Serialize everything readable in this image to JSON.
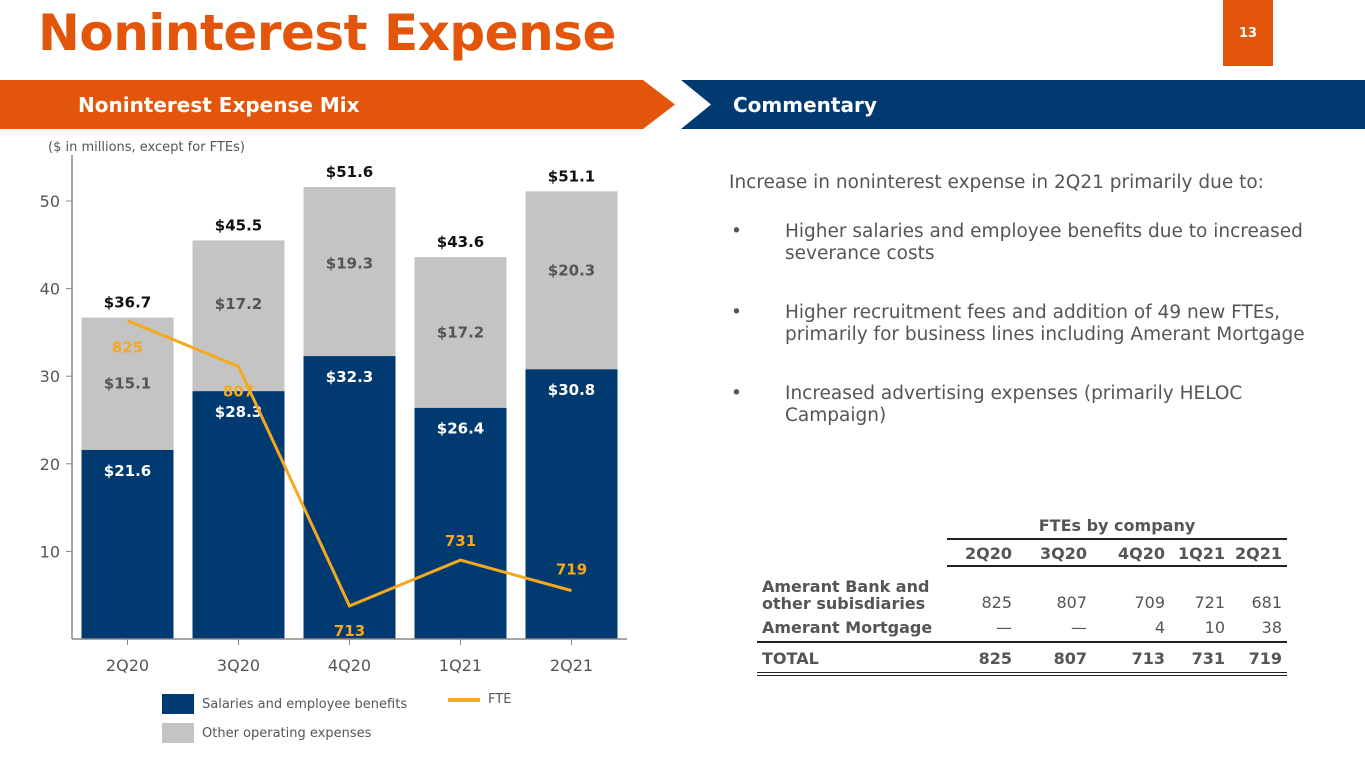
{
  "page": {
    "title": "Noninterest Expense",
    "number": "13"
  },
  "bands": {
    "left": "Noninterest Expense Mix",
    "right": "Commentary"
  },
  "chart_data": {
    "type": "bar",
    "stacked": true,
    "note": "($ in millions, except for FTEs)",
    "categories": [
      "2Q20",
      "3Q20",
      "4Q20",
      "1Q21",
      "2Q21"
    ],
    "yticks": [
      "10",
      "20",
      "30",
      "40",
      "50"
    ],
    "ylim": [
      0,
      50
    ],
    "series": [
      {
        "name": "Salaries and employee benefits",
        "values": [
          21.6,
          28.3,
          32.3,
          26.4,
          30.8
        ],
        "labels": [
          "$21.6",
          "$28.3",
          "$32.3",
          "$26.4",
          "$30.8"
        ],
        "color": "#003a70"
      },
      {
        "name": "Other operating expenses",
        "values": [
          15.1,
          17.2,
          19.3,
          17.2,
          20.3
        ],
        "labels": [
          "$15.1",
          "$17.2",
          "$19.3",
          "$17.2",
          "$20.3"
        ],
        "color": "#c4c4c4"
      }
    ],
    "totals": [
      "$36.7",
      "$45.5",
      "$51.6",
      "$43.6",
      "$51.1"
    ],
    "totals_values": [
      36.7,
      45.5,
      51.6,
      43.6,
      51.1
    ],
    "line": {
      "name": "FTE",
      "type": "line",
      "values": [
        825,
        807,
        713,
        731,
        719
      ],
      "labels": [
        "825",
        "807",
        "713",
        "731",
        "719"
      ],
      "color": "#f4a91e",
      "ylim": [
        700,
        872
      ]
    }
  },
  "commentary": {
    "intro": "Increase in noninterest expense in 2Q21 primarily due to:",
    "bullets": [
      "Higher salaries and employee benefits due to increased severance costs",
      "Higher recruitment fees and addition of 49 new FTEs, primarily for business lines including Amerant Mortgage",
      "Increased advertising expenses (primarily HELOC Campaign)"
    ]
  },
  "fte_table": {
    "caption": "FTEs by company",
    "headers": [
      "2Q20",
      "3Q20",
      "4Q20",
      "1Q21",
      "2Q21"
    ],
    "rows": [
      {
        "label": "Amerant Bank and other subisdiaries",
        "values": [
          "825",
          "807",
          "709",
          "721",
          "681"
        ]
      },
      {
        "label": "Amerant Mortgage",
        "values": [
          "—",
          "—",
          "4",
          "10",
          "38"
        ]
      }
    ],
    "total": {
      "label": "TOTAL",
      "values": [
        "825",
        "807",
        "713",
        "731",
        "719"
      ]
    }
  }
}
